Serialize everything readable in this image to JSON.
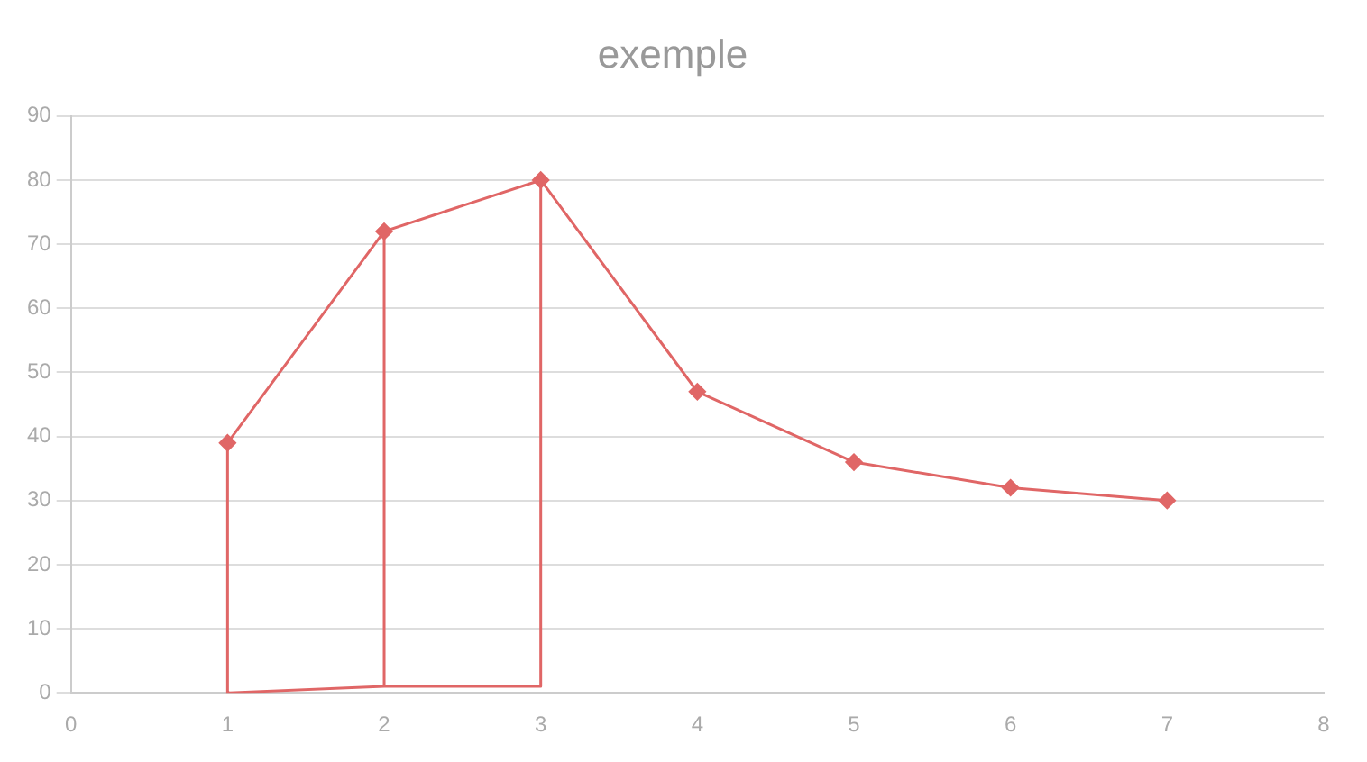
{
  "chart_data": {
    "type": "line",
    "title": "exemple",
    "series": [
      {
        "color": "#e06666",
        "x": [
          1,
          2,
          3,
          4,
          5,
          6,
          7
        ],
        "values": [
          39,
          72,
          80,
          47,
          36,
          32,
          30
        ],
        "marker": "diamond"
      },
      {
        "color": "#e06666",
        "x": [
          1,
          1,
          2,
          2,
          2,
          3,
          3
        ],
        "values": [
          39,
          0,
          1,
          72,
          1,
          1,
          80
        ],
        "marker": "none"
      }
    ],
    "xlim": [
      0,
      8
    ],
    "xticks": [
      0,
      1,
      2,
      3,
      4,
      5,
      6,
      7,
      8
    ],
    "ylim": [
      0,
      90
    ],
    "yticks": [
      0,
      10,
      20,
      30,
      40,
      50,
      60,
      70,
      80,
      90
    ],
    "grid": "y",
    "legend": false,
    "line_style": "solid"
  }
}
